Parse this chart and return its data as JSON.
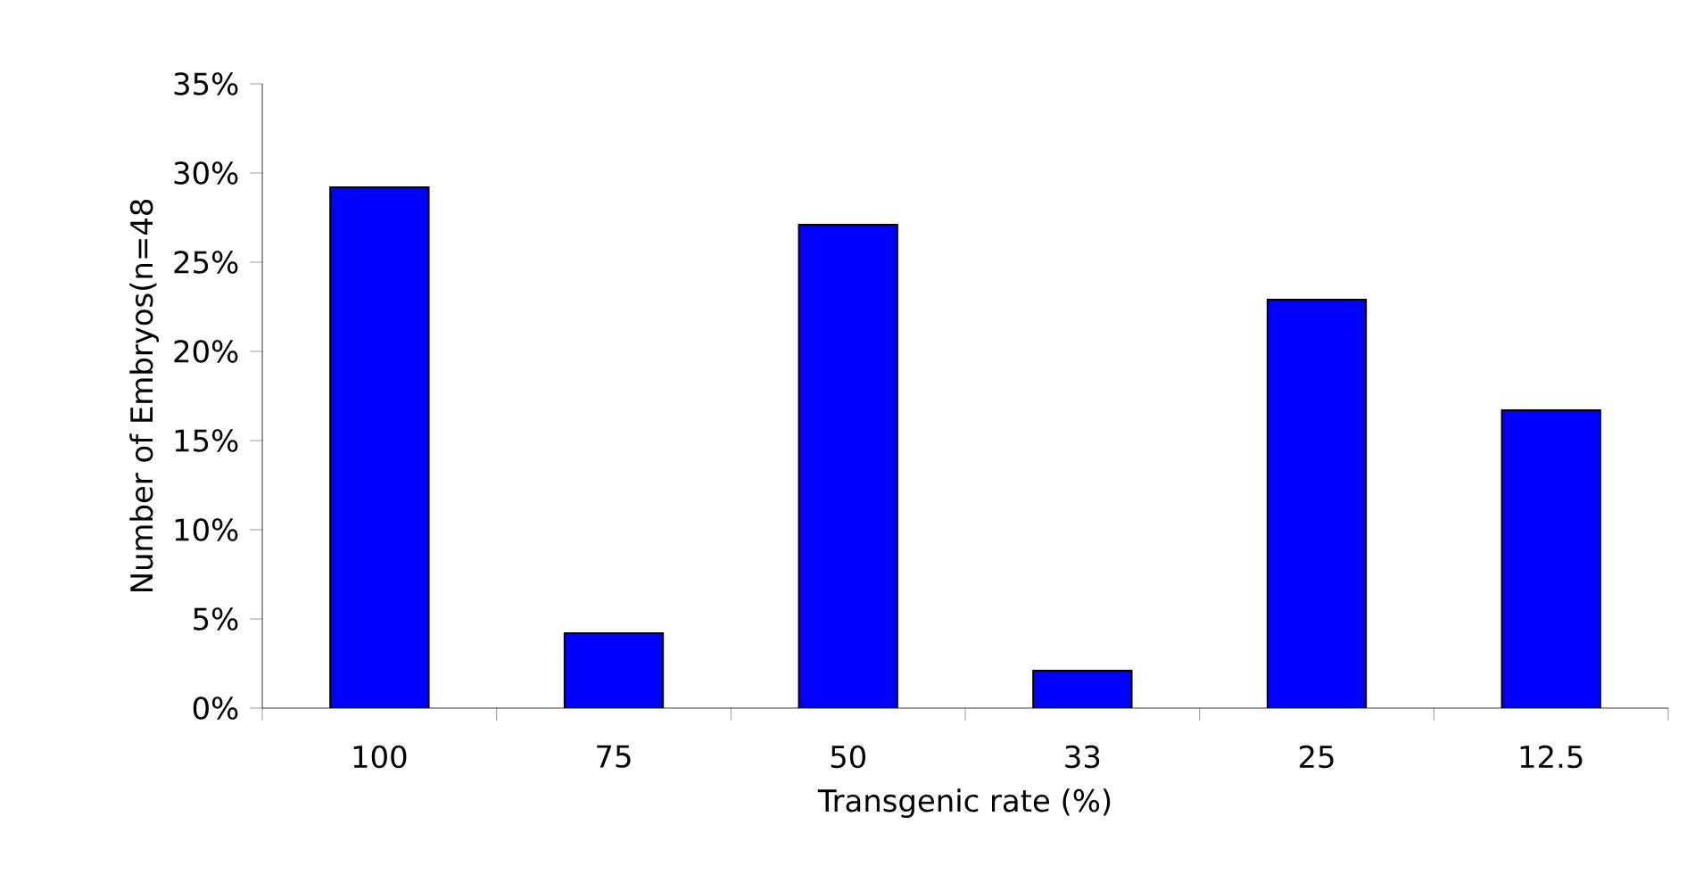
{
  "chart_data": {
    "type": "bar",
    "xlabel": "Transgenic rate (%)",
    "ylabel": "Number of Embryos(n=48",
    "categories": [
      "100",
      "75",
      "50",
      "33",
      "25",
      "12.5"
    ],
    "values": [
      29.2,
      4.2,
      27.1,
      2.1,
      22.9,
      16.7
    ],
    "color": "#0000ff",
    "ylim": [
      0,
      35
    ],
    "yticks": [
      {
        "value": 0,
        "label": "0%"
      },
      {
        "value": 5,
        "label": "5%"
      },
      {
        "value": 10,
        "label": "10%"
      },
      {
        "value": 15,
        "label": "15%"
      },
      {
        "value": 20,
        "label": "20%"
      },
      {
        "value": 25,
        "label": "25%"
      },
      {
        "value": 30,
        "label": "30%"
      },
      {
        "value": 35,
        "label": "35%"
      }
    ]
  }
}
